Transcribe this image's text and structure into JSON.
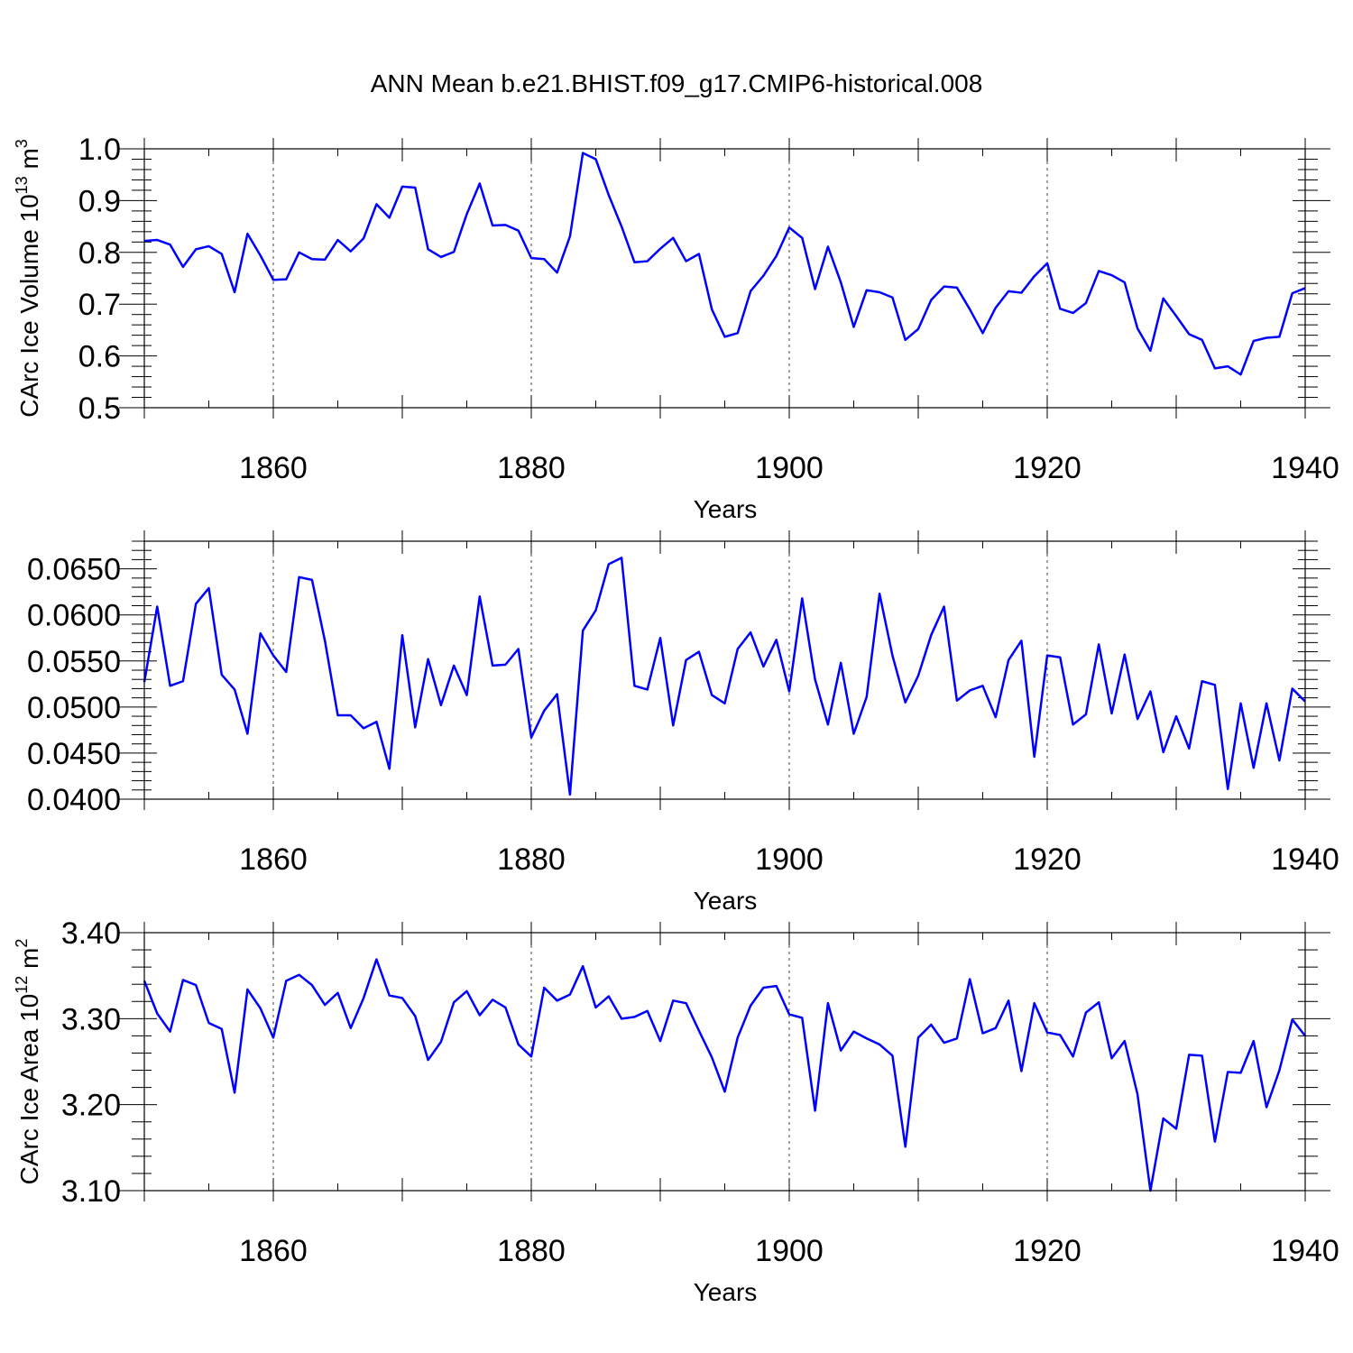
{
  "chart_data": {
    "title": "ANN Mean b.e21.BHIST.f09_g17.CMIP6-historical.008",
    "line_color": "#0000ff",
    "panels": [
      {
        "type": "line",
        "ylabel": "CArc Ice Volume 10",
        "ylabel_sup": "13",
        "ylabel_unit": " m",
        "ylabel_unit_sup": "3",
        "xlabel": "Years",
        "xlim": [
          1850,
          1940
        ],
        "ylim": [
          0.5,
          1.0
        ],
        "yticks": [
          0.5,
          0.6,
          0.7,
          0.8,
          0.9,
          1.0
        ],
        "ytick_labels": [
          "0.5",
          "0.6",
          "0.7",
          "0.8",
          "0.9",
          "1.0"
        ],
        "xticks": [
          1860,
          1880,
          1900,
          1920,
          1940
        ],
        "xtick_labels": [
          "1860",
          "1880",
          "1900",
          "1920",
          "1940"
        ],
        "grid_x": [
          1860,
          1880,
          1900,
          1920
        ],
        "x_start": 1850,
        "values": [
          0.822,
          0.824,
          0.815,
          0.772,
          0.806,
          0.812,
          0.797,
          0.723,
          0.836,
          0.794,
          0.747,
          0.748,
          0.8,
          0.787,
          0.786,
          0.824,
          0.802,
          0.827,
          0.893,
          0.867,
          0.927,
          0.925,
          0.806,
          0.791,
          0.801,
          0.874,
          0.933,
          0.852,
          0.853,
          0.842,
          0.789,
          0.787,
          0.761,
          0.831,
          0.992,
          0.98,
          0.911,
          0.85,
          0.781,
          0.783,
          0.807,
          0.828,
          0.783,
          0.797,
          0.69,
          0.637,
          0.644,
          0.725,
          0.755,
          0.793,
          0.848,
          0.828,
          0.729,
          0.811,
          0.742,
          0.656,
          0.727,
          0.723,
          0.713,
          0.631,
          0.652,
          0.708,
          0.734,
          0.732,
          0.69,
          0.644,
          0.693,
          0.725,
          0.722,
          0.754,
          0.779,
          0.691,
          0.683,
          0.702,
          0.764,
          0.756,
          0.742,
          0.653,
          0.61,
          0.711,
          0.677,
          0.642,
          0.631,
          0.576,
          0.58,
          0.564,
          0.629,
          0.635,
          0.637,
          0.721,
          0.731
        ]
      },
      {
        "type": "line",
        "ylabel": "",
        "xlabel": "Years",
        "xlim": [
          1850,
          1940
        ],
        "ylim": [
          0.04,
          0.068
        ],
        "yticks": [
          0.04,
          0.045,
          0.05,
          0.055,
          0.06,
          0.065
        ],
        "ytick_labels": [
          "0.0400",
          "0.0450",
          "0.0500",
          "0.0550",
          "0.0600",
          "0.0650"
        ],
        "xticks": [
          1860,
          1880,
          1900,
          1920,
          1940
        ],
        "xtick_labels": [
          "1860",
          "1880",
          "1900",
          "1920",
          "1940"
        ],
        "grid_x": [
          1860,
          1880,
          1900,
          1920
        ],
        "x_start": 1850,
        "values": [
          0.0527,
          0.0609,
          0.0523,
          0.0528,
          0.0612,
          0.0629,
          0.0535,
          0.0519,
          0.0471,
          0.058,
          0.0556,
          0.0538,
          0.0641,
          0.0638,
          0.0572,
          0.0491,
          0.0491,
          0.0477,
          0.0484,
          0.0433,
          0.0578,
          0.0478,
          0.0552,
          0.0502,
          0.0545,
          0.0513,
          0.062,
          0.0545,
          0.0546,
          0.0563,
          0.0467,
          0.0496,
          0.0514,
          0.0405,
          0.0583,
          0.0605,
          0.0655,
          0.0662,
          0.0523,
          0.0519,
          0.0575,
          0.048,
          0.0551,
          0.056,
          0.0513,
          0.0504,
          0.0563,
          0.0581,
          0.0544,
          0.0573,
          0.0517,
          0.0618,
          0.053,
          0.0481,
          0.0548,
          0.0471,
          0.0511,
          0.0623,
          0.0556,
          0.0505,
          0.0534,
          0.0578,
          0.0609,
          0.0507,
          0.0518,
          0.0523,
          0.0489,
          0.0551,
          0.0572,
          0.0446,
          0.0556,
          0.0554,
          0.0481,
          0.0492,
          0.0568,
          0.0493,
          0.0557,
          0.0487,
          0.0517,
          0.0451,
          0.049,
          0.0455,
          0.0528,
          0.0524,
          0.0411,
          0.0504,
          0.0434,
          0.0504,
          0.0442,
          0.052,
          0.0506
        ]
      },
      {
        "type": "line",
        "ylabel": "CArc Ice Area 10",
        "ylabel_sup": "12",
        "ylabel_unit": " m",
        "ylabel_unit_sup": "2",
        "xlabel": "Years",
        "xlim": [
          1850,
          1940
        ],
        "ylim": [
          3.1,
          3.4
        ],
        "yticks": [
          3.1,
          3.2,
          3.3,
          3.4
        ],
        "ytick_labels": [
          "3.10",
          "3.20",
          "3.30",
          "3.40"
        ],
        "xticks": [
          1860,
          1880,
          1900,
          1920,
          1940
        ],
        "xtick_labels": [
          "1860",
          "1880",
          "1900",
          "1920",
          "1940"
        ],
        "grid_x": [
          1860,
          1880,
          1900,
          1920
        ],
        "x_start": 1850,
        "values": [
          3.344,
          3.306,
          3.285,
          3.345,
          3.339,
          3.295,
          3.288,
          3.214,
          3.334,
          3.312,
          3.278,
          3.344,
          3.351,
          3.339,
          3.316,
          3.33,
          3.289,
          3.324,
          3.369,
          3.327,
          3.324,
          3.303,
          3.252,
          3.273,
          3.319,
          3.332,
          3.304,
          3.322,
          3.313,
          3.27,
          3.256,
          3.336,
          3.321,
          3.328,
          3.361,
          3.313,
          3.326,
          3.3,
          3.302,
          3.309,
          3.274,
          3.321,
          3.318,
          3.286,
          3.255,
          3.215,
          3.278,
          3.315,
          3.336,
          3.338,
          3.305,
          3.301,
          3.193,
          3.318,
          3.263,
          3.285,
          3.277,
          3.27,
          3.257,
          3.151,
          3.278,
          3.293,
          3.272,
          3.277,
          3.346,
          3.283,
          3.289,
          3.321,
          3.239,
          3.318,
          3.284,
          3.281,
          3.256,
          3.307,
          3.319,
          3.254,
          3.274,
          3.212,
          3.1,
          3.184,
          3.172,
          3.258,
          3.257,
          3.157,
          3.238,
          3.237,
          3.274,
          3.197,
          3.24,
          3.299,
          3.28
        ]
      }
    ]
  }
}
